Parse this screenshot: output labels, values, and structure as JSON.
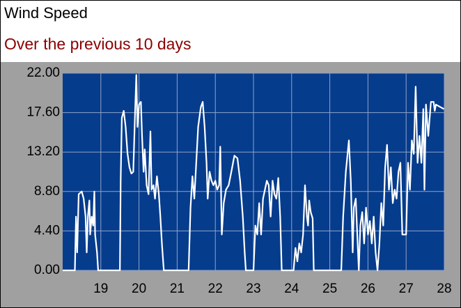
{
  "chart_data": {
    "type": "line",
    "title": "Wind Speed",
    "subtitle": "Over the previous 10 days",
    "color": "#ffffff",
    "grid": true,
    "xlim": [
      18,
      28
    ],
    "xticks": [
      19,
      20,
      21,
      22,
      23,
      24,
      25,
      26,
      27,
      28
    ],
    "ylim": [
      0,
      22
    ],
    "yticks": [
      {
        "value": 0,
        "label": "0.00"
      },
      {
        "value": 4.4,
        "label": "4.40"
      },
      {
        "value": 8.8,
        "label": "8.80"
      },
      {
        "value": 13.2,
        "label": "13.20"
      },
      {
        "value": 17.6,
        "label": "17.60"
      },
      {
        "value": 22,
        "label": "22.00"
      }
    ],
    "x": [
      18.0,
      18.32,
      18.35,
      18.38,
      18.42,
      18.5,
      18.55,
      18.6,
      18.63,
      18.66,
      18.7,
      18.72,
      18.76,
      18.8,
      18.83,
      18.85,
      18.9,
      18.93,
      19.5,
      19.52,
      19.55,
      19.6,
      19.65,
      19.7,
      19.75,
      19.8,
      19.85,
      19.9,
      19.93,
      19.96,
      20.0,
      20.05,
      20.08,
      20.12,
      20.15,
      20.2,
      20.25,
      20.3,
      20.33,
      20.38,
      20.42,
      20.47,
      20.52,
      20.56,
      20.6,
      20.65,
      21.3,
      21.35,
      21.4,
      21.45,
      21.5,
      21.55,
      21.62,
      21.67,
      21.72,
      21.77,
      21.8,
      21.85,
      21.9,
      21.95,
      22.0,
      22.05,
      22.1,
      22.13,
      22.17,
      22.22,
      22.28,
      22.35,
      22.42,
      22.5,
      22.58,
      22.65,
      22.72,
      22.77,
      22.8,
      23.0,
      23.05,
      23.1,
      23.15,
      23.2,
      23.25,
      23.3,
      23.35,
      23.4,
      23.45,
      23.5,
      23.55,
      23.6,
      23.65,
      23.7,
      23.74,
      24.05,
      24.1,
      24.15,
      24.2,
      24.25,
      24.3,
      24.35,
      24.4,
      24.43,
      24.46,
      24.5,
      24.55,
      24.58,
      25.3,
      25.35,
      25.42,
      25.5,
      25.55,
      25.6,
      25.63,
      25.68,
      25.73,
      25.76,
      25.8,
      25.85,
      25.9,
      25.95,
      26.0,
      26.05,
      26.1,
      26.15,
      26.2,
      26.25,
      26.3,
      26.35,
      26.4,
      26.45,
      26.5,
      26.55,
      26.6,
      26.65,
      26.7,
      26.75,
      26.8,
      26.85,
      26.9,
      27.0,
      27.05,
      27.1,
      27.15,
      27.2,
      27.25,
      27.3,
      27.35,
      27.4,
      27.45,
      27.48,
      27.52,
      27.58,
      27.65,
      27.72,
      27.75,
      27.78,
      27.99
    ],
    "values": [
      0,
      0,
      6,
      2,
      8.5,
      8.8,
      8,
      6,
      2,
      6,
      7.8,
      4,
      6,
      5,
      8.8,
      4,
      2,
      0,
      0,
      10,
      17,
      17.8,
      16,
      13,
      11.5,
      10.8,
      11,
      18,
      21.8,
      16,
      18.5,
      18.8,
      15,
      11,
      13.5,
      9.5,
      8.5,
      15.5,
      9,
      9.5,
      8,
      10.5,
      8.5,
      6,
      3,
      0,
      0,
      7,
      10.5,
      8,
      12,
      16,
      18.2,
      18.8,
      16,
      12,
      8,
      11,
      10,
      9.5,
      10,
      9,
      9.5,
      13.8,
      4,
      7.5,
      9,
      9.5,
      11,
      12.8,
      12.5,
      10,
      6,
      2,
      0,
      0,
      5,
      4,
      7.5,
      4,
      8,
      9,
      10,
      9.5,
      6,
      10,
      8.5,
      8,
      10.3,
      6,
      0,
      0,
      2.5,
      1,
      3,
      2,
      4,
      9.5,
      6,
      5,
      7.8,
      6.5,
      5.8,
      0,
      0,
      6,
      11,
      14.5,
      10,
      2,
      7,
      8,
      3,
      0,
      5,
      6.5,
      3,
      7,
      4,
      5.5,
      3,
      6,
      2,
      0,
      3,
      7.5,
      5,
      11.5,
      14,
      9,
      11.5,
      7.5,
      9,
      8,
      11,
      12,
      4,
      4,
      12,
      9,
      14.5,
      13,
      20.5,
      12,
      15,
      12,
      18,
      9,
      18.5,
      15,
      18.8,
      18.8,
      17.8,
      18.5,
      18
    ]
  }
}
